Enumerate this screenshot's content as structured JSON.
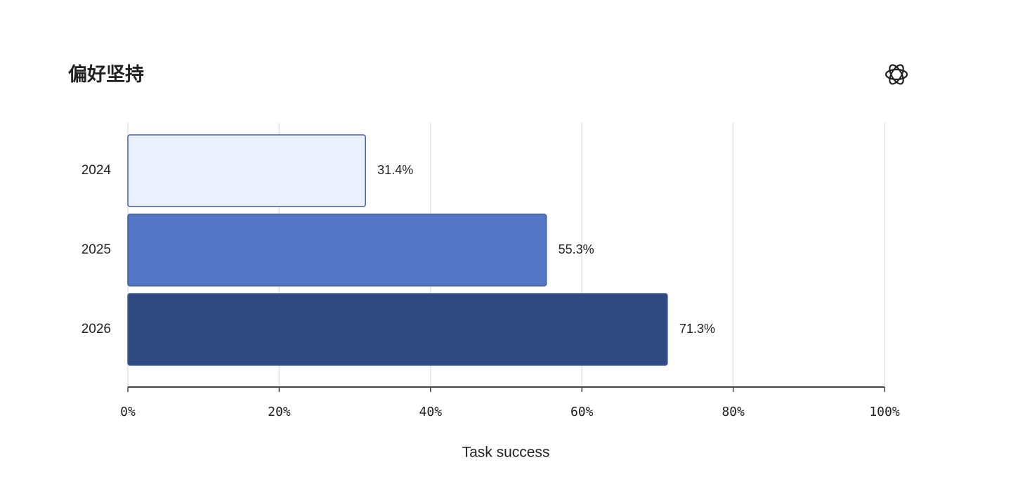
{
  "chart_data": {
    "type": "hbar",
    "title": "偏好坚持",
    "categories": [
      "2024",
      "2025",
      "2026"
    ],
    "values": [
      31.4,
      55.3,
      71.3
    ],
    "value_labels": [
      "31.4%",
      "55.3%",
      "71.3%"
    ],
    "colors": [
      "#eaf1fd",
      "#5377c4",
      "#2e4a80"
    ],
    "xlim": [
      0,
      100
    ],
    "xticks": [
      {
        "value": 0,
        "label": "0%"
      },
      {
        "value": 20,
        "label": "20%"
      },
      {
        "value": 40,
        "label": "40%"
      },
      {
        "value": 60,
        "label": "60%"
      },
      {
        "value": 80,
        "label": "80%"
      },
      {
        "value": 100,
        "label": "100%"
      }
    ],
    "xlabel": "Task success",
    "grid": true
  }
}
